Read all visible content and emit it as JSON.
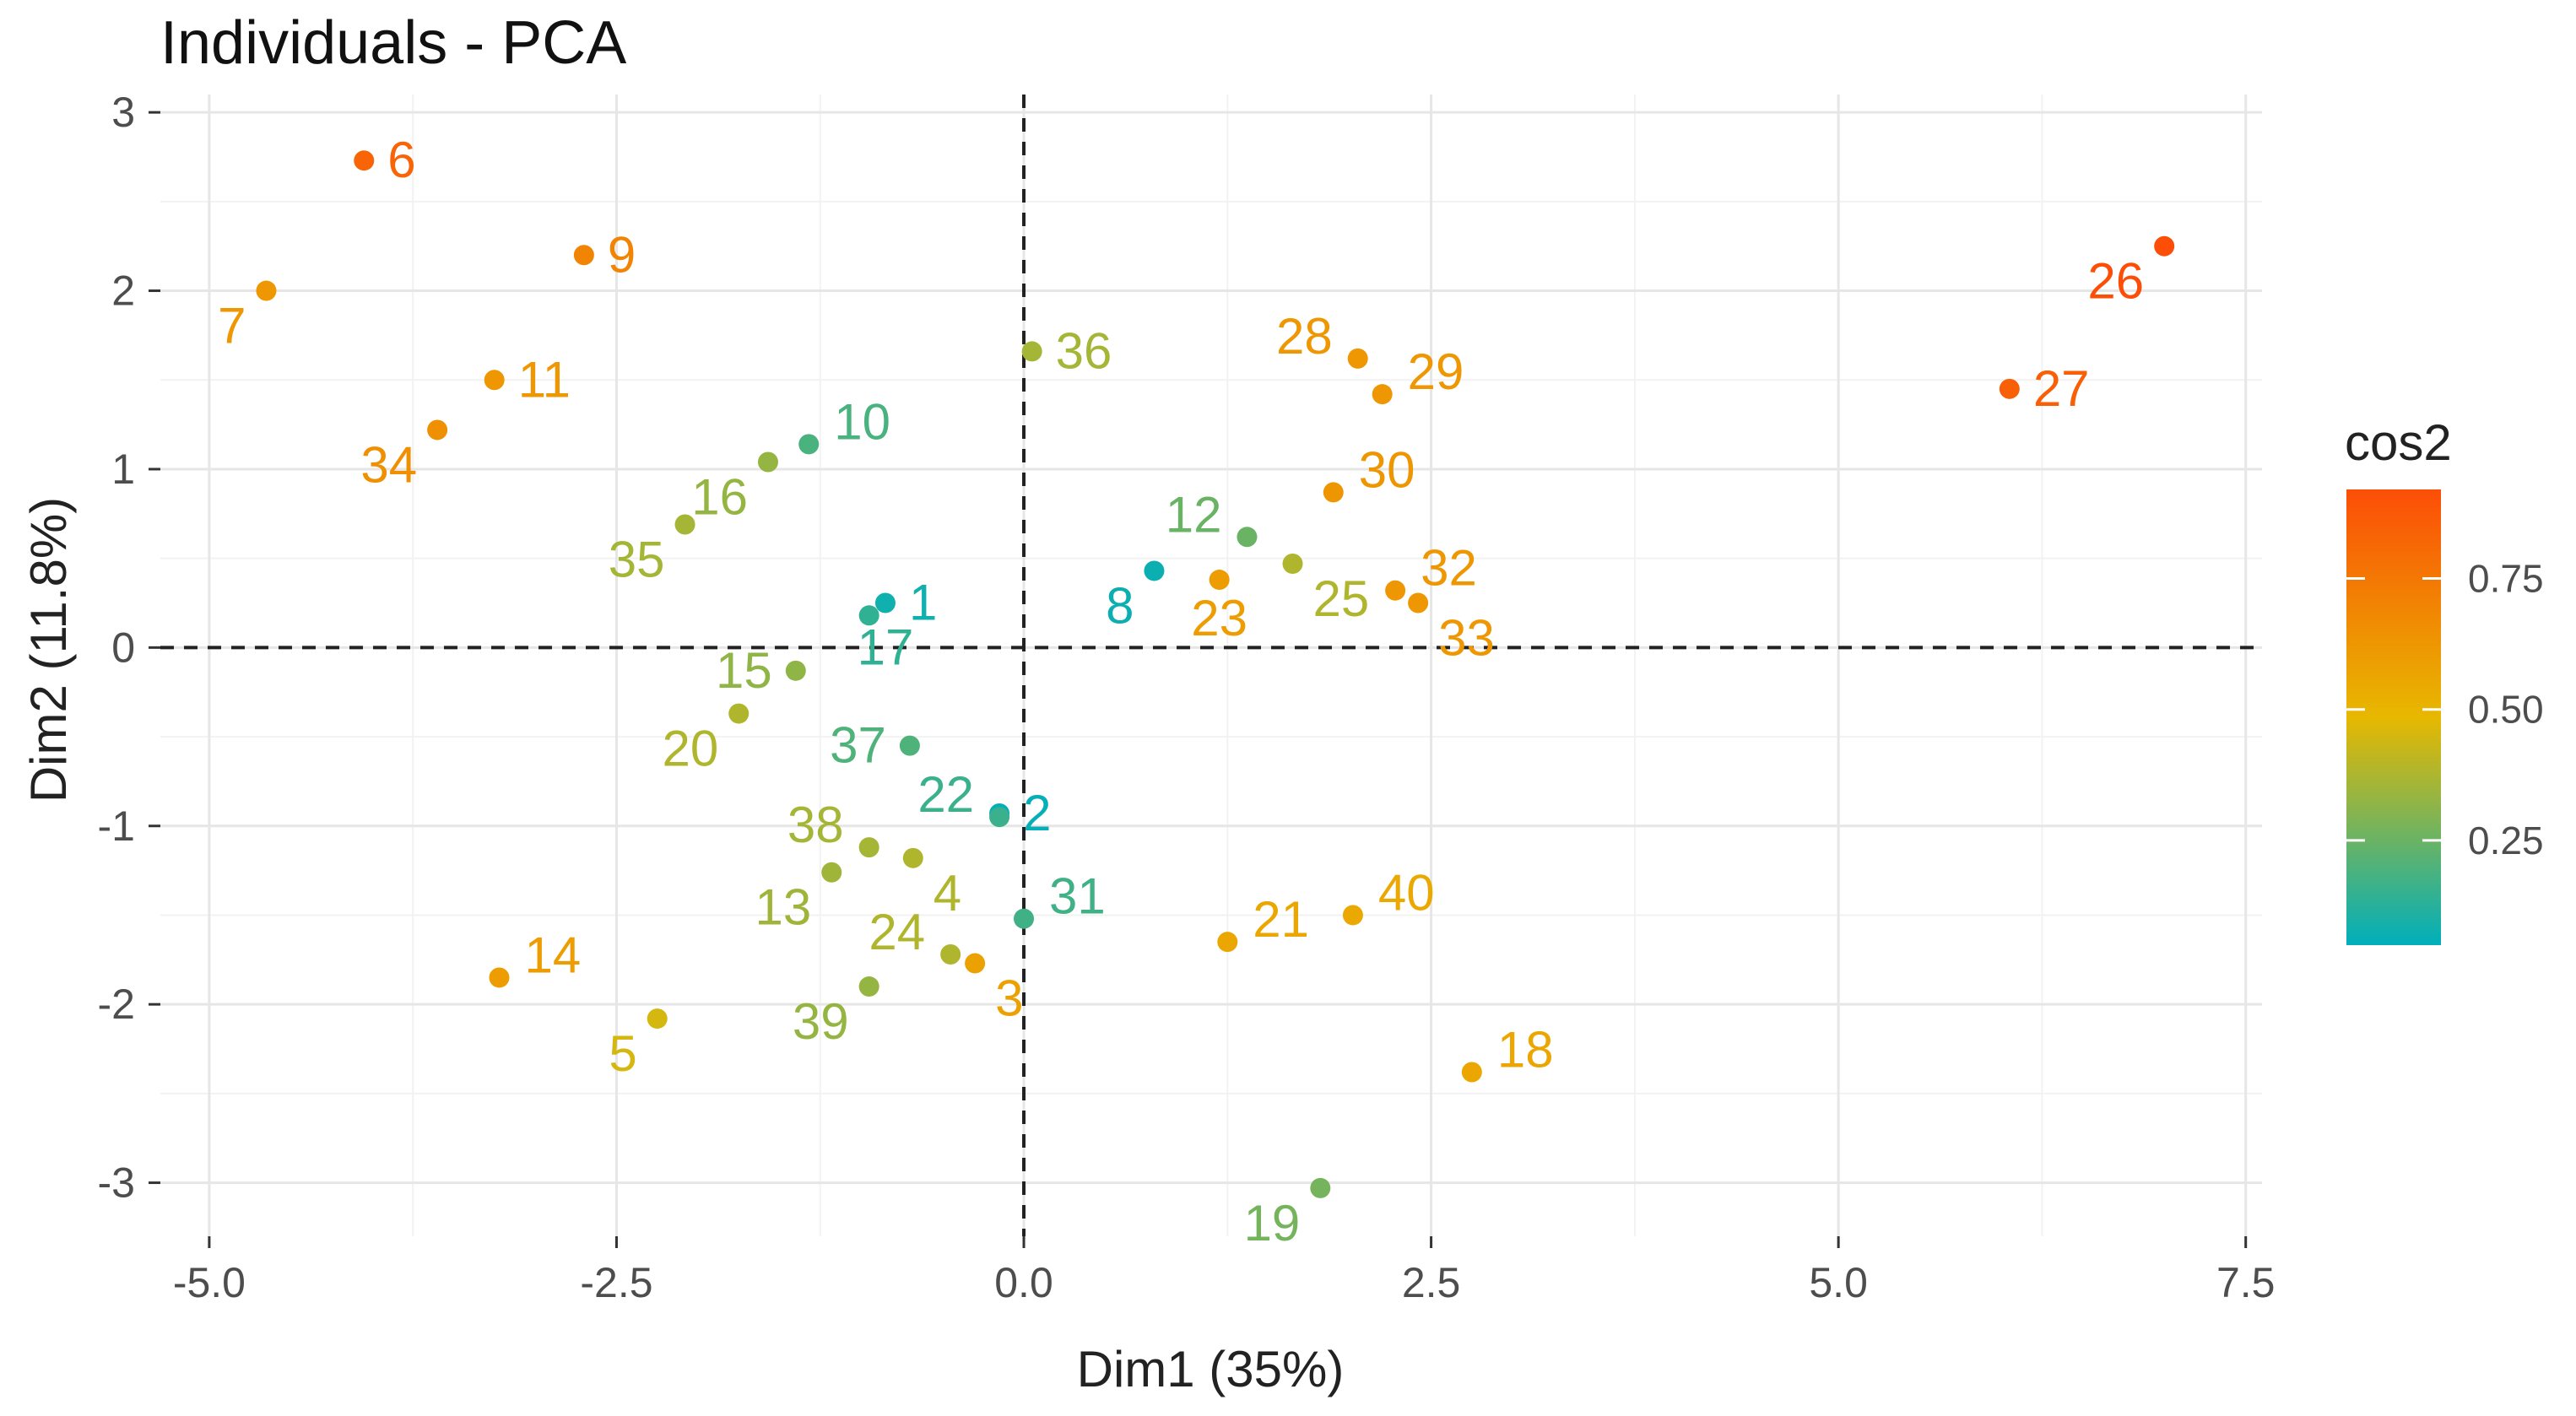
{
  "chart_data": {
    "type": "scatter",
    "title": "Individuals - PCA",
    "xlabel": "Dim1 (35%)",
    "ylabel": "Dim2 (11.8%)",
    "xlim": [
      -5.3,
      7.6
    ],
    "ylim": [
      -3.3,
      3.1
    ],
    "x_ticks": [
      {
        "value": -5.0,
        "label": "-5.0"
      },
      {
        "value": -2.5,
        "label": "-2.5"
      },
      {
        "value": 0.0,
        "label": "0.0"
      },
      {
        "value": 2.5,
        "label": "2.5"
      },
      {
        "value": 5.0,
        "label": "5.0"
      },
      {
        "value": 7.5,
        "label": "7.5"
      }
    ],
    "y_ticks": [
      {
        "value": -3,
        "label": "-3"
      },
      {
        "value": -2,
        "label": "-2"
      },
      {
        "value": -1,
        "label": "-1"
      },
      {
        "value": 0,
        "label": "0"
      },
      {
        "value": 1,
        "label": "1"
      },
      {
        "value": 2,
        "label": "2"
      },
      {
        "value": 3,
        "label": "3"
      }
    ],
    "grid": true,
    "reference_lines": {
      "x": 0,
      "y": 0,
      "style": "dashed"
    },
    "color_variable": "cos2",
    "legend": {
      "title": "cos2",
      "placement": "right",
      "range": [
        0.05,
        0.92
      ],
      "ticks": [
        {
          "value": 0.25,
          "label": "0.25"
        },
        {
          "value": 0.5,
          "label": "0.50"
        },
        {
          "value": 0.75,
          "label": "0.75"
        }
      ],
      "colors": [
        {
          "at": 0.0,
          "color": "#00AFBB"
        },
        {
          "at": 0.5,
          "color": "#E7B800"
        },
        {
          "at": 1.0,
          "color": "#FC4E07"
        }
      ]
    },
    "points": [
      {
        "label": "1",
        "x": -0.85,
        "y": 0.25,
        "cos2": 0.08,
        "label_pos": "right"
      },
      {
        "label": "17",
        "x": -0.95,
        "y": 0.18,
        "cos2": 0.14,
        "label_pos": "bottom-left"
      },
      {
        "label": "2",
        "x": -0.15,
        "y": -0.93,
        "cos2": 0.06,
        "label_pos": "right"
      },
      {
        "label": "3",
        "x": -0.3,
        "y": -1.77,
        "cos2": 0.58,
        "label_pos": "below-right"
      },
      {
        "label": "4",
        "x": -0.68,
        "y": -1.18,
        "cos2": 0.38,
        "label_pos": "below-right"
      },
      {
        "label": "5",
        "x": -2.25,
        "y": -2.08,
        "cos2": 0.45,
        "label_pos": "below-left"
      },
      {
        "label": "6",
        "x": -4.05,
        "y": 2.73,
        "cos2": 0.83,
        "label_pos": "right"
      },
      {
        "label": "7",
        "x": -4.65,
        "y": 2.0,
        "cos2": 0.62,
        "label_pos": "below-left"
      },
      {
        "label": "8",
        "x": 0.8,
        "y": 0.43,
        "cos2": 0.07,
        "label_pos": "below-left"
      },
      {
        "label": "9",
        "x": -2.7,
        "y": 2.2,
        "cos2": 0.7,
        "label_pos": "right"
      },
      {
        "label": "10",
        "x": -1.32,
        "y": 1.14,
        "cos2": 0.19,
        "label_pos": "above-right"
      },
      {
        "label": "11",
        "x": -3.25,
        "y": 1.5,
        "cos2": 0.62,
        "label_pos": "right"
      },
      {
        "label": "12",
        "x": 1.37,
        "y": 0.62,
        "cos2": 0.25,
        "label_pos": "above-left"
      },
      {
        "label": "13",
        "x": -1.18,
        "y": -1.26,
        "cos2": 0.35,
        "label_pos": "below-left"
      },
      {
        "label": "14",
        "x": -3.22,
        "y": -1.85,
        "cos2": 0.6,
        "label_pos": "above-right"
      },
      {
        "label": "15",
        "x": -1.4,
        "y": -0.13,
        "cos2": 0.32,
        "label_pos": "left"
      },
      {
        "label": "16",
        "x": -1.57,
        "y": 1.04,
        "cos2": 0.33,
        "label_pos": "below-left"
      },
      {
        "label": "18",
        "x": 2.75,
        "y": -2.38,
        "cos2": 0.56,
        "label_pos": "above-right"
      },
      {
        "label": "19",
        "x": 1.82,
        "y": -3.03,
        "cos2": 0.27,
        "label_pos": "below-left"
      },
      {
        "label": "20",
        "x": -1.75,
        "y": -0.37,
        "cos2": 0.38,
        "label_pos": "below-left"
      },
      {
        "label": "21",
        "x": 1.25,
        "y": -1.65,
        "cos2": 0.56,
        "label_pos": "above-right"
      },
      {
        "label": "22",
        "x": -0.15,
        "y": -0.95,
        "cos2": 0.16,
        "label_pos": "above-left"
      },
      {
        "label": "23",
        "x": 1.2,
        "y": 0.38,
        "cos2": 0.6,
        "label_pos": "below"
      },
      {
        "label": "24",
        "x": -0.45,
        "y": -1.72,
        "cos2": 0.38,
        "label_pos": "above-left"
      },
      {
        "label": "25",
        "x": 1.65,
        "y": 0.47,
        "cos2": 0.38,
        "label_pos": "below-right"
      },
      {
        "label": "26",
        "x": 7.0,
        "y": 2.25,
        "cos2": 0.92,
        "label_pos": "below-left"
      },
      {
        "label": "27",
        "x": 6.05,
        "y": 1.45,
        "cos2": 0.85,
        "label_pos": "right"
      },
      {
        "label": "28",
        "x": 2.05,
        "y": 1.62,
        "cos2": 0.62,
        "label_pos": "above-left"
      },
      {
        "label": "29",
        "x": 2.2,
        "y": 1.42,
        "cos2": 0.62,
        "label_pos": "above-right"
      },
      {
        "label": "30",
        "x": 1.9,
        "y": 0.87,
        "cos2": 0.63,
        "label_pos": "above-right"
      },
      {
        "label": "31",
        "x": 0.0,
        "y": -1.52,
        "cos2": 0.17,
        "label_pos": "above-right"
      },
      {
        "label": "32",
        "x": 2.28,
        "y": 0.32,
        "cos2": 0.62,
        "label_pos": "above-right"
      },
      {
        "label": "33",
        "x": 2.42,
        "y": 0.25,
        "cos2": 0.62,
        "label_pos": "below-right"
      },
      {
        "label": "34",
        "x": -3.6,
        "y": 1.22,
        "cos2": 0.65,
        "label_pos": "below-left"
      },
      {
        "label": "35",
        "x": -2.08,
        "y": 0.69,
        "cos2": 0.36,
        "label_pos": "below-left"
      },
      {
        "label": "36",
        "x": 0.05,
        "y": 1.66,
        "cos2": 0.36,
        "label_pos": "right"
      },
      {
        "label": "37",
        "x": -0.7,
        "y": -0.55,
        "cos2": 0.2,
        "label_pos": "left"
      },
      {
        "label": "38",
        "x": -0.95,
        "y": -1.12,
        "cos2": 0.36,
        "label_pos": "above-left"
      },
      {
        "label": "39",
        "x": -0.95,
        "y": -1.9,
        "cos2": 0.33,
        "label_pos": "below-left"
      },
      {
        "label": "40",
        "x": 2.02,
        "y": -1.5,
        "cos2": 0.55,
        "label_pos": "above-right"
      }
    ]
  }
}
